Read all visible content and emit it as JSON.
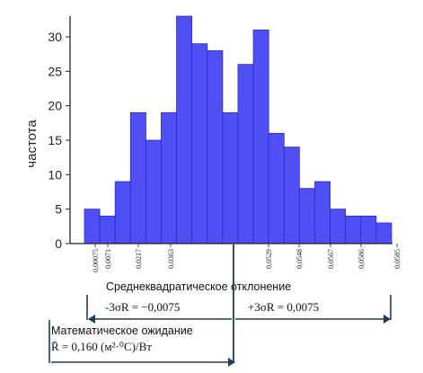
{
  "chart_data": {
    "type": "bar",
    "ylabel": "частота",
    "xlabel": "",
    "ylim": [
      0,
      33
    ],
    "yticks": [
      0,
      5,
      10,
      15,
      20,
      25,
      30
    ],
    "values": [
      5,
      4,
      9,
      19,
      15,
      19,
      33,
      29,
      28,
      19,
      26,
      31,
      16,
      14,
      8,
      9,
      5,
      4,
      4,
      3
    ],
    "x_tick_labels": [
      "0,00075",
      "0,0071",
      "0,0217",
      "0,0363",
      "0,0529",
      "0,0548",
      "0,0567",
      "0,0586",
      "0,0585"
    ],
    "bar_color": "#4f4ff5",
    "bar_edge_color": "#2a2ac8",
    "annotation_color": "#1f3c5a",
    "annotations": {
      "std_label": "Среднеквадратическое отклонение",
      "minus_3sigma": "-3σR = −0,0075",
      "plus_3sigma": "+3σR = 0,0075",
      "mean_label": "Математическое ожидание",
      "mean_value": "R̄ = 0,160 (м²·⁰С)/Вт"
    }
  }
}
